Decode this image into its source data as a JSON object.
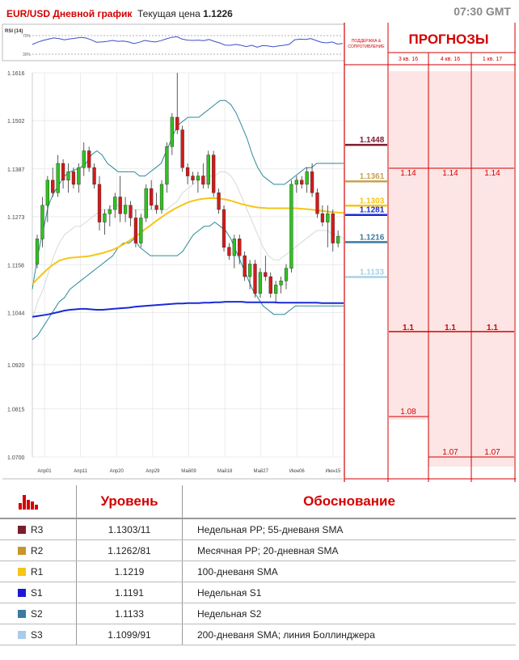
{
  "header": {
    "pair_title": "EUR/USD Дневной график",
    "current_price_label": "Текущая цена",
    "current_price": "1.1226",
    "time": "07:30 GMT"
  },
  "rsi": {
    "label": "RSI (14)",
    "levels": [
      "70%",
      "30%"
    ]
  },
  "chart_data": {
    "type": "candlestick",
    "ylim": [
      1.07,
      1.1616
    ],
    "y_ticks": [
      "1.1616",
      "1.1502",
      "1.1387",
      "1.1273",
      "1.1158",
      "1.1044",
      "1.0920",
      "1.0815",
      "1.0700"
    ],
    "x_ticks": [
      "Апр01",
      "Апр11",
      "Апр20",
      "Апр29",
      "Май09",
      "Май18",
      "Май27",
      "Июн06",
      "Июн15"
    ],
    "candles": [
      [
        1.116,
        1.123,
        1.115,
        1.122
      ],
      [
        1.122,
        1.132,
        1.12,
        1.13
      ],
      [
        1.13,
        1.137,
        1.126,
        1.136
      ],
      [
        1.136,
        1.139,
        1.132,
        1.133
      ],
      [
        1.133,
        1.142,
        1.132,
        1.14
      ],
      [
        1.14,
        1.141,
        1.134,
        1.136
      ],
      [
        1.136,
        1.14,
        1.133,
        1.138
      ],
      [
        1.138,
        1.139,
        1.134,
        1.135
      ],
      [
        1.135,
        1.14,
        1.133,
        1.139
      ],
      [
        1.139,
        1.145,
        1.137,
        1.143
      ],
      [
        1.143,
        1.144,
        1.138,
        1.139
      ],
      [
        1.139,
        1.14,
        1.134,
        1.135
      ],
      [
        1.135,
        1.137,
        1.124,
        1.126
      ],
      [
        1.126,
        1.129,
        1.123,
        1.128
      ],
      [
        1.128,
        1.13,
        1.125,
        1.129
      ],
      [
        1.129,
        1.133,
        1.127,
        1.132
      ],
      [
        1.132,
        1.137,
        1.126,
        1.128
      ],
      [
        1.128,
        1.132,
        1.126,
        1.13
      ],
      [
        1.13,
        1.131,
        1.125,
        1.127
      ],
      [
        1.127,
        1.129,
        1.12,
        1.121
      ],
      [
        1.121,
        1.128,
        1.12,
        1.127
      ],
      [
        1.127,
        1.135,
        1.126,
        1.134
      ],
      [
        1.134,
        1.136,
        1.129,
        1.13
      ],
      [
        1.13,
        1.133,
        1.128,
        1.129
      ],
      [
        1.129,
        1.136,
        1.128,
        1.135
      ],
      [
        1.135,
        1.145,
        1.133,
        1.144
      ],
      [
        1.144,
        1.152,
        1.142,
        1.151
      ],
      [
        1.151,
        1.1616,
        1.147,
        1.148
      ],
      [
        1.148,
        1.149,
        1.138,
        1.139
      ],
      [
        1.139,
        1.14,
        1.135,
        1.137
      ],
      [
        1.137,
        1.138,
        1.135,
        1.136
      ],
      [
        1.136,
        1.138,
        1.133,
        1.137
      ],
      [
        1.137,
        1.14,
        1.134,
        1.135
      ],
      [
        1.135,
        1.143,
        1.134,
        1.142
      ],
      [
        1.142,
        1.143,
        1.132,
        1.133
      ],
      [
        1.133,
        1.134,
        1.128,
        1.129
      ],
      [
        1.129,
        1.13,
        1.119,
        1.12
      ],
      [
        1.12,
        1.121,
        1.117,
        1.118
      ],
      [
        1.118,
        1.123,
        1.115,
        1.122
      ],
      [
        1.122,
        1.123,
        1.116,
        1.118
      ],
      [
        1.118,
        1.119,
        1.112,
        1.113
      ],
      [
        1.113,
        1.117,
        1.11,
        1.116
      ],
      [
        1.116,
        1.117,
        1.108,
        1.109
      ],
      [
        1.109,
        1.115,
        1.108,
        1.114
      ],
      [
        1.114,
        1.118,
        1.112,
        1.113
      ],
      [
        1.113,
        1.114,
        1.108,
        1.109
      ],
      [
        1.109,
        1.112,
        1.107,
        1.111
      ],
      [
        1.111,
        1.113,
        1.109,
        1.112
      ],
      [
        1.112,
        1.116,
        1.11,
        1.115
      ],
      [
        1.115,
        1.136,
        1.114,
        1.135
      ],
      [
        1.135,
        1.137,
        1.133,
        1.136
      ],
      [
        1.136,
        1.137,
        1.134,
        1.135
      ],
      [
        1.135,
        1.139,
        1.133,
        1.138
      ],
      [
        1.138,
        1.14,
        1.132,
        1.133
      ],
      [
        1.133,
        1.134,
        1.127,
        1.128
      ],
      [
        1.128,
        1.13,
        1.125,
        1.126
      ],
      [
        1.126,
        1.13,
        1.12,
        1.128
      ],
      [
        1.128,
        1.129,
        1.119,
        1.121
      ],
      [
        1.121,
        1.124,
        1.12,
        1.1226
      ]
    ],
    "lines": [
      {
        "name": "Bollinger upper",
        "color": "#2a8a9a",
        "values": [
          1.11,
          1.118,
          1.124,
          1.13,
          1.133,
          1.135,
          1.137,
          1.138,
          1.1385,
          1.139,
          1.14,
          1.142,
          1.143,
          1.142,
          1.14,
          1.139,
          1.138,
          1.138,
          1.138,
          1.138,
          1.137,
          1.137,
          1.138,
          1.139,
          1.14,
          1.143,
          1.146,
          1.149,
          1.15,
          1.151,
          1.151,
          1.151,
          1.152,
          1.153,
          1.154,
          1.155,
          1.155,
          1.154,
          1.152,
          1.149,
          1.146,
          1.142,
          1.139,
          1.137,
          1.136,
          1.135,
          1.135,
          1.135,
          1.136,
          1.137,
          1.138,
          1.139,
          1.139,
          1.14,
          1.14,
          1.14,
          1.14,
          1.14,
          1.14
        ]
      },
      {
        "name": "Bollinger lower",
        "color": "#2a8a9a",
        "values": [
          1.098,
          1.099,
          1.101,
          1.103,
          1.105,
          1.107,
          1.108,
          1.11,
          1.111,
          1.112,
          1.113,
          1.114,
          1.115,
          1.116,
          1.117,
          1.118,
          1.12,
          1.121,
          1.121,
          1.122,
          1.12,
          1.119,
          1.118,
          1.118,
          1.118,
          1.118,
          1.118,
          1.118,
          1.119,
          1.121,
          1.123,
          1.124,
          1.125,
          1.125,
          1.126,
          1.125,
          1.124,
          1.122,
          1.119,
          1.116,
          1.113,
          1.11,
          1.108,
          1.106,
          1.105,
          1.104,
          1.104,
          1.104,
          1.105,
          1.106,
          1.106,
          1.106,
          1.106,
          1.106,
          1.106,
          1.106,
          1.106,
          1.106,
          1.106
        ]
      },
      {
        "name": "SMA 20",
        "color": "#d8d8d8",
        "values": [
          1.103,
          1.107,
          1.11,
          1.114,
          1.118,
          1.121,
          1.123,
          1.124,
          1.125,
          1.125,
          1.126,
          1.127,
          1.128,
          1.129,
          1.129,
          1.13,
          1.13,
          1.13,
          1.13,
          1.129,
          1.129,
          1.129,
          1.129,
          1.129,
          1.129,
          1.129,
          1.13,
          1.131,
          1.133,
          1.134,
          1.135,
          1.136,
          1.137,
          1.137,
          1.137,
          1.138,
          1.138,
          1.137,
          1.135,
          1.132,
          1.129,
          1.126,
          1.123,
          1.12,
          1.118,
          1.117,
          1.117,
          1.118,
          1.119,
          1.12,
          1.121,
          1.122,
          1.123,
          1.124,
          1.124,
          1.124,
          1.123,
          1.123,
          1.122
        ]
      },
      {
        "name": "SMA 100",
        "color": "#f5c518",
        "values": [
          1.1112,
          1.1125,
          1.1138,
          1.115,
          1.116,
          1.1168,
          1.1172,
          1.1175,
          1.1176,
          1.1177,
          1.1178,
          1.118,
          1.1183,
          1.1186,
          1.119,
          1.1194,
          1.12,
          1.1207,
          1.1215,
          1.1224,
          1.1233,
          1.1243,
          1.1252,
          1.1262,
          1.1271,
          1.128,
          1.1288,
          1.1295,
          1.1301,
          1.1307,
          1.1311,
          1.1314,
          1.1316,
          1.1317,
          1.1317,
          1.1316,
          1.1314,
          1.1311,
          1.1307,
          1.1303,
          1.13,
          1.1297,
          1.1295,
          1.1294,
          1.1293,
          1.1293,
          1.1293,
          1.1293,
          1.1293,
          1.1293,
          1.1292,
          1.1291,
          1.129,
          1.1288,
          1.1287,
          1.1285,
          1.1284,
          1.1283,
          1.1282
        ]
      },
      {
        "name": "SMA 200",
        "color": "#1a2ad6",
        "values": [
          1.1034,
          1.1036,
          1.1038,
          1.104,
          1.1043,
          1.1046,
          1.1049,
          1.1051,
          1.1052,
          1.1053,
          1.1053,
          1.1052,
          1.1051,
          1.1051,
          1.1052,
          1.1053,
          1.1054,
          1.1055,
          1.1056,
          1.1058,
          1.1059,
          1.106,
          1.1061,
          1.1062,
          1.1063,
          1.1064,
          1.1065,
          1.1066,
          1.1066,
          1.1067,
          1.1067,
          1.1067,
          1.1068,
          1.1068,
          1.1069,
          1.1069,
          1.107,
          1.107,
          1.107,
          1.107,
          1.1069,
          1.1069,
          1.1069,
          1.1069,
          1.1069,
          1.1069,
          1.1068,
          1.1068,
          1.1068,
          1.1068,
          1.1068,
          1.1068,
          1.1068,
          1.1068,
          1.1067,
          1.1067,
          1.1067,
          1.1067,
          1.1067
        ]
      }
    ],
    "rsi_values": [
      45,
      52,
      58,
      62,
      66,
      64,
      60,
      63,
      65,
      68,
      66,
      60,
      52,
      53,
      55,
      58,
      55,
      56,
      53,
      48,
      52,
      58,
      55,
      53,
      57,
      63,
      68,
      70,
      62,
      59,
      58,
      59,
      57,
      61,
      55,
      50,
      43,
      42,
      45,
      42,
      38,
      42,
      36,
      41,
      40,
      37,
      40,
      42,
      45,
      60,
      62,
      61,
      64,
      58,
      52,
      50,
      53,
      46,
      48
    ],
    "price_levels": [
      {
        "value": "1.1448",
        "color": "#7a1e2e"
      },
      {
        "value": "1.1361",
        "color": "#c8a255"
      },
      {
        "value": "1.1303",
        "color": "#f5c518"
      },
      {
        "value": "1.1281",
        "color": "#1a2ad6"
      },
      {
        "value": "1.1216",
        "color": "#3a7aa0"
      },
      {
        "value": "1.1133",
        "color": "#a9d0e8"
      }
    ]
  },
  "forecasts": {
    "side_title": "ПОДДЕРЖКА & СОПРОТИВЛЕНИЕ",
    "title": "ПРОГНОЗЫ",
    "columns": [
      "3 кв. 16",
      "4 кв. 16",
      "1 кв. 17"
    ],
    "top_values": [
      "1.14",
      "1.14",
      "1.14"
    ],
    "mid_values": [
      "1.1",
      "1.1",
      "1.1"
    ],
    "low_values": [
      "1.08",
      "1.07",
      "1.07"
    ]
  },
  "levels_table": {
    "header_level": "Уровень",
    "header_reason": "Обоснование",
    "rows": [
      {
        "name": "R3",
        "color": "#7a1e2e",
        "value": "1.1303/11",
        "reason": "Недельная PP; 55-дневаня SMA"
      },
      {
        "name": "R2",
        "color": "#c8962a",
        "value": "1.1262/81",
        "reason": "Месячная PP; 20-дневная SMA"
      },
      {
        "name": "R1",
        "color": "#f5c518",
        "value": "1.1219",
        "reason": "100-дневаня SMA"
      },
      {
        "name": "S1",
        "color": "#1a1ad6",
        "value": "1.1191",
        "reason": "Недельная S1"
      },
      {
        "name": "S2",
        "color": "#3a7aa0",
        "value": "1.1133",
        "reason": "Недельная S2"
      },
      {
        "name": "S3",
        "color": "#a9cce8",
        "value": "1.1099/91",
        "reason": "200-дневаня SMA; линия Боллинджера"
      }
    ]
  }
}
